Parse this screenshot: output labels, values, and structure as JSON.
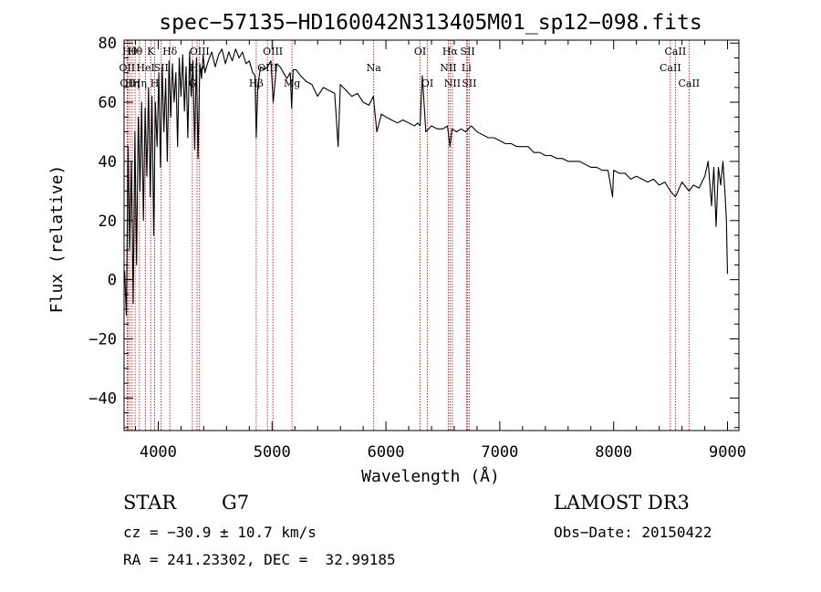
{
  "chart_data": {
    "type": "line",
    "title": "spec−57135−HD160042N313405M01_sp12−098.fits",
    "xlabel": "Wavelength (Å)",
    "ylabel": "Flux (relative)",
    "xlim": [
      3700,
      9100
    ],
    "ylim": [
      -51,
      81
    ],
    "xticks": [
      4000,
      5000,
      6000,
      7000,
      8000,
      9000
    ],
    "yticks": [
      -40,
      -20,
      0,
      20,
      40,
      60,
      80
    ],
    "xtick_labels": [
      "4000",
      "5000",
      "6000",
      "7000",
      "8000",
      "9000"
    ],
    "ytick_labels": [
      "−40",
      "−20",
      "0",
      "20",
      "40",
      "60",
      "80"
    ],
    "series": [
      {
        "name": "flux",
        "x": [
          3705,
          3720,
          3735,
          3750,
          3765,
          3780,
          3795,
          3810,
          3825,
          3840,
          3855,
          3870,
          3885,
          3900,
          3915,
          3930,
          3945,
          3960,
          3975,
          3990,
          4005,
          4020,
          4035,
          4050,
          4065,
          4080,
          4095,
          4110,
          4125,
          4140,
          4155,
          4170,
          4185,
          4200,
          4215,
          4230,
          4245,
          4260,
          4275,
          4290,
          4305,
          4320,
          4335,
          4350,
          4365,
          4380,
          4395,
          4410,
          4440,
          4470,
          4500,
          4530,
          4560,
          4590,
          4620,
          4650,
          4680,
          4710,
          4740,
          4770,
          4800,
          4830,
          4850,
          4861,
          4875,
          4900,
          4930,
          4960,
          4990,
          5010,
          5040,
          5070,
          5100,
          5130,
          5160,
          5172,
          5185,
          5210,
          5250,
          5300,
          5350,
          5400,
          5450,
          5500,
          5550,
          5580,
          5600,
          5650,
          5700,
          5750,
          5800,
          5850,
          5890,
          5920,
          5960,
          6000,
          6050,
          6100,
          6150,
          6200,
          6250,
          6280,
          6300,
          6320,
          6350,
          6400,
          6450,
          6500,
          6540,
          6563,
          6580,
          6620,
          6660,
          6700,
          6750,
          6800,
          6850,
          6900,
          6950,
          7000,
          7050,
          7100,
          7150,
          7200,
          7250,
          7300,
          7350,
          7400,
          7450,
          7500,
          7550,
          7600,
          7650,
          7700,
          7750,
          7800,
          7850,
          7900,
          7950,
          7990,
          8000,
          8050,
          8100,
          8150,
          8200,
          8250,
          8300,
          8350,
          8400,
          8450,
          8498,
          8542,
          8600,
          8662,
          8700,
          8750,
          8800,
          8830,
          8860,
          8880,
          8900,
          8920,
          8940,
          8960,
          8980,
          8990,
          9000
        ],
        "y": [
          3,
          -12,
          45,
          10,
          40,
          -8,
          50,
          5,
          55,
          30,
          60,
          20,
          58,
          35,
          65,
          28,
          62,
          15,
          60,
          45,
          70,
          38,
          72,
          50,
          68,
          40,
          74,
          55,
          73,
          60,
          70,
          45,
          75,
          62,
          76,
          57,
          72,
          48,
          77,
          62,
          74,
          44,
          75,
          41,
          73,
          68,
          76,
          70,
          74,
          77,
          72,
          76,
          78,
          73,
          77,
          74,
          78,
          75,
          77,
          73,
          74,
          70,
          69,
          48,
          66,
          72,
          71,
          72,
          74,
          60,
          73,
          72,
          70,
          68,
          70,
          58,
          71,
          71,
          69,
          67,
          66,
          62,
          65,
          64,
          63,
          45,
          66,
          64,
          62,
          63,
          60,
          59,
          62,
          50,
          56,
          55,
          54,
          53,
          54,
          53,
          52,
          53,
          52,
          69,
          50,
          52,
          51,
          51,
          52,
          45,
          51,
          50,
          51,
          50,
          52,
          50,
          49,
          48,
          48,
          47,
          46,
          46,
          45,
          45,
          45,
          43,
          43,
          42,
          42,
          41,
          41,
          40,
          40,
          40,
          39,
          38,
          38,
          37,
          37,
          28,
          37,
          36,
          36,
          34,
          35,
          34,
          33,
          34,
          32,
          33,
          30,
          28,
          33,
          30,
          32,
          31,
          35,
          40,
          25,
          38,
          18,
          38,
          32,
          40,
          28,
          20,
          2
        ]
      }
    ],
    "lines": [
      {
        "wavelength": 3727,
        "label": "OII",
        "row": 2
      },
      {
        "wavelength": 3734,
        "label": "OII",
        "row": 3
      },
      {
        "wavelength": 3750,
        "label": "Hθ",
        "row": 1
      },
      {
        "wavelength": 3771,
        "label": "Hη",
        "row": 3
      },
      {
        "wavelength": 3797,
        "label": "Hθ",
        "row": 1
      },
      {
        "wavelength": 3835,
        "label": "Hη",
        "row": 3
      },
      {
        "wavelength": 3889,
        "label": "HeI",
        "row": 2
      },
      {
        "wavelength": 3934,
        "label": "K",
        "row": 1
      },
      {
        "wavelength": 3969,
        "label": "H",
        "row": 3
      },
      {
        "wavelength": 4026,
        "label": "SII",
        "row": 2
      },
      {
        "wavelength": 4102,
        "label": "Hδ",
        "row": 1
      },
      {
        "wavelength": 4300,
        "label": "G",
        "row": 3
      },
      {
        "wavelength": 4341,
        "label": "Hγ",
        "row": 2
      },
      {
        "wavelength": 4363,
        "label": "OIII",
        "row": 1
      },
      {
        "wavelength": 4861,
        "label": "Hβ",
        "row": 3
      },
      {
        "wavelength": 4959,
        "label": "OIII",
        "row": 2
      },
      {
        "wavelength": 5007,
        "label": "OIII",
        "row": 1
      },
      {
        "wavelength": 5175,
        "label": "Mg",
        "row": 3
      },
      {
        "wavelength": 5893,
        "label": "Na",
        "row": 2
      },
      {
        "wavelength": 6300,
        "label": "OI",
        "row": 1
      },
      {
        "wavelength": 6364,
        "label": "OI",
        "row": 3
      },
      {
        "wavelength": 6548,
        "label": "NII",
        "row": 2
      },
      {
        "wavelength": 6563,
        "label": "Hα",
        "row": 1
      },
      {
        "wavelength": 6584,
        "label": "NII",
        "row": 3
      },
      {
        "wavelength": 6707,
        "label": "Li",
        "row": 2
      },
      {
        "wavelength": 6717,
        "label": "SII",
        "row": 1
      },
      {
        "wavelength": 6731,
        "label": "SII",
        "row": 3
      },
      {
        "wavelength": 8498,
        "label": "CaII",
        "row": 2
      },
      {
        "wavelength": 8542,
        "label": "CaII",
        "row": 1
      },
      {
        "wavelength": 8662,
        "label": "CaII",
        "row": 3
      }
    ]
  },
  "info": {
    "class_label": "STAR",
    "subclass": "G7",
    "survey": "LAMOST DR3",
    "redshift": "cz = −30.9 ± 10.7 km/s",
    "obs_date": "Obs−Date: 20150422",
    "coords": "RA = 241.23302, DEC =  32.99185"
  },
  "colors": {
    "line_marker": "#aa0000",
    "spectrum": "#000000",
    "axes": "#000000"
  }
}
